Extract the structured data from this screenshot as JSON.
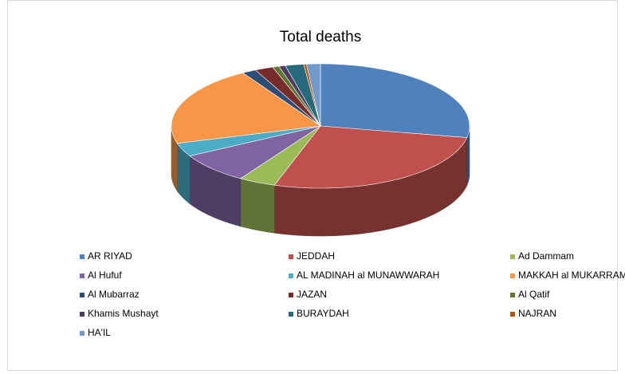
{
  "chart_data": {
    "type": "pie",
    "title": "Total deaths",
    "categories": [
      "AR RIYAD",
      "JEDDAH",
      "Ad Dammam",
      "Al Hufuf",
      "AL MADINAH al MUNAWWARAH",
      "MAKKAH al MUKARRAMAH",
      "Al Mubarraz",
      "JAZAN",
      "Al Qatif",
      "Khamis Mushayt",
      "BURAYDAH",
      "NAJRAN",
      "HA'IL"
    ],
    "values": [
      28,
      27,
      4,
      8,
      3.5,
      20.8,
      1.5,
      2,
      0.7,
      0.7,
      2,
      0.3,
      1.5
    ],
    "colors": [
      "#4f81bd",
      "#c0504d",
      "#9bbb59",
      "#8064a2",
      "#4bacc6",
      "#f79646",
      "#2c4d75",
      "#772c2a",
      "#5f7530",
      "#4d3b62",
      "#276a7c",
      "#b65708",
      "#729aca"
    ],
    "legend": "bottom"
  }
}
